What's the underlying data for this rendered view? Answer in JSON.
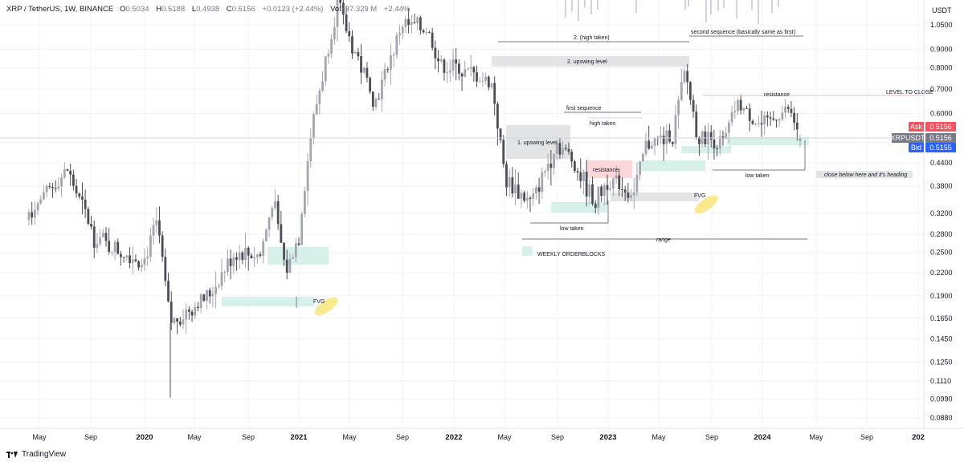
{
  "header": {
    "symbol": "XRP / TetherUS, 1W, BINANCE",
    "o_label": "O",
    "o_value": "0.5034",
    "h_label": "H",
    "h_value": "0.5188",
    "l_label": "L",
    "l_value": "0.4938",
    "c_label": "C",
    "c_value": "0.5156",
    "change": "+0.0123 (+2.44%)",
    "vol_label": "Vol",
    "vol_value": "237.329 M",
    "vol_change": "+2.44%"
  },
  "currency": "USDT",
  "footer": {
    "brand": "TradingView"
  },
  "colors": {
    "up": "#a3a6af",
    "down": "#4d4e55",
    "grid": "#f0f3fa",
    "orderblock": "#d8f0ea",
    "upswing_zone": "#e3e4e6",
    "resistance_zone": "#fbd7d9",
    "highlight": "#fbe98f",
    "ask": "#f7525f",
    "bid": "#2962ff",
    "last": "#787b86"
  },
  "chart_data": {
    "type": "candlestick",
    "title": "XRP / TetherUS, 1W, BINANCE",
    "y_scale": "log",
    "y_axis_ticks": [
      "1.0500",
      "0.9000",
      "0.8000",
      "0.7000",
      "0.6000",
      "0.5000",
      "0.4400",
      "0.3800",
      "0.3200",
      "0.2800",
      "0.2500",
      "0.2200",
      "0.1900",
      "0.1650",
      "0.1450",
      "0.1250",
      "0.1110",
      "0.0990",
      "0.0880"
    ],
    "x_axis_ticks": [
      "May",
      "Sep",
      "2020",
      "May",
      "Sep",
      "2021",
      "May",
      "Sep",
      "2022",
      "May",
      "Sep",
      "2023",
      "May",
      "Sep",
      "2024",
      "May",
      "Sep",
      "202"
    ],
    "x_axis_bold": [
      "2020",
      "2021",
      "2022",
      "2023",
      "2024",
      "202"
    ],
    "price_tags": [
      {
        "label": "Ask",
        "value": "0.5156",
        "color": "#f7525f"
      },
      {
        "label": "XRPUSDT",
        "value": "0.5156",
        "color": "#787b86"
      },
      {
        "label": "Bid",
        "value": "0.5155",
        "color": "#2962ff"
      }
    ],
    "anchors": [
      [
        "2019-04",
        0.32
      ],
      [
        "2019-07",
        0.42
      ],
      [
        "2019-09",
        0.28
      ],
      [
        "2019-11",
        0.25
      ],
      [
        "2020-01",
        0.24
      ],
      [
        "2020-02",
        0.3
      ],
      [
        "2020-03",
        0.16
      ],
      [
        "2020-06",
        0.19
      ],
      [
        "2020-08",
        0.25
      ],
      [
        "2020-10",
        0.245
      ],
      [
        "2020-11",
        0.35
      ],
      [
        "2020-12",
        0.22
      ],
      [
        "2021-01",
        0.28
      ],
      [
        "2021-02",
        0.55
      ],
      [
        "2021-04",
        1.2
      ],
      [
        "2021-05",
        0.95
      ],
      [
        "2021-07",
        0.65
      ],
      [
        "2021-09",
        1.05
      ],
      [
        "2021-11",
        1.02
      ],
      [
        "2021-12",
        0.82
      ],
      [
        "2022-02",
        0.78
      ],
      [
        "2022-04",
        0.72
      ],
      [
        "2022-05",
        0.4
      ],
      [
        "2022-07",
        0.34
      ],
      [
        "2022-09",
        0.5
      ],
      [
        "2022-10",
        0.46
      ],
      [
        "2022-12",
        0.34
      ],
      [
        "2023-01",
        0.4
      ],
      [
        "2023-03",
        0.36
      ],
      [
        "2023-04",
        0.5
      ],
      [
        "2023-06",
        0.52
      ],
      [
        "2023-07",
        0.78
      ],
      [
        "2023-08",
        0.52
      ],
      [
        "2023-10",
        0.5
      ],
      [
        "2023-11",
        0.64
      ],
      [
        "2024-01",
        0.55
      ],
      [
        "2024-03",
        0.62
      ],
      [
        "2024-04",
        0.5156
      ]
    ],
    "volume": "faint histogram at top of pane (mid-2023 onward)",
    "annotations": {
      "high_taken_2": "2. (high taken)",
      "second_sequence": "second sequence (basically same as first)",
      "upswing_level_2": "2. upswing level",
      "level_to_close": "LEVEL TO CLOSE",
      "resistance_top": "resistance",
      "first_sequence": "first sequence",
      "high_taken": "high taken",
      "upswing_level_1": "1. upswing level",
      "resistance_mid": "resistance",
      "low_taken_1": "low taken",
      "low_taken_2": "low taken",
      "close_below": "close below here and it's heading",
      "fvg_1": "FVG",
      "fvg_2": "FVG",
      "range": "range",
      "legend": "WEEKLY ORDERBLOCKS"
    }
  }
}
